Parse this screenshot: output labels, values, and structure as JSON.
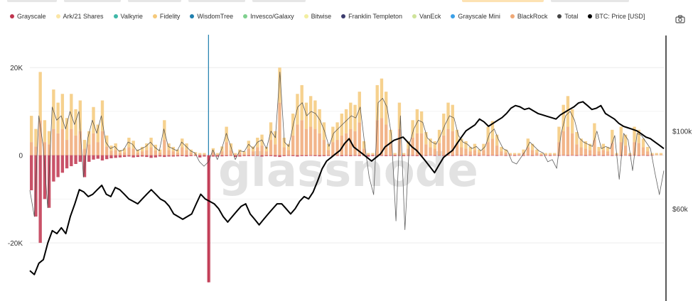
{
  "legend": [
    {
      "label": "Grayscale",
      "color": "#c0344e"
    },
    {
      "label": "Ark/21 Shares",
      "color": "#fbe6a6"
    },
    {
      "label": "Valkyrie",
      "color": "#3fb7a7"
    },
    {
      "label": "Fidelity",
      "color": "#f5c97a"
    },
    {
      "label": "WisdomTree",
      "color": "#1f7fae"
    },
    {
      "label": "Invesco/Galaxy",
      "color": "#7fd08e"
    },
    {
      "label": "Bitwise",
      "color": "#f2eea0"
    },
    {
      "label": "Franklin Templeton",
      "color": "#3c3c6e"
    },
    {
      "label": "VanEck",
      "color": "#cfe39a"
    },
    {
      "label": "Grayscale Mini",
      "color": "#3aa0e8"
    },
    {
      "label": "BlackRock",
      "color": "#f0a875"
    },
    {
      "label": "Total",
      "color": "#444444"
    },
    {
      "label": "BTC: Price [USD]",
      "color": "#000000"
    }
  ],
  "watermark": "glassnode",
  "icons": {
    "camera": "camera-icon"
  },
  "chart_data": {
    "type": "bar",
    "y_left": {
      "ticks": [
        "20K",
        "0",
        "-20K"
      ],
      "tick_values": [
        20000,
        0,
        -20000
      ],
      "ylim": [
        -31000,
        27000
      ]
    },
    "y_right": {
      "ticks": [
        "$100k",
        "$60k"
      ],
      "tick_values": [
        100000,
        60000
      ],
      "scale": "log",
      "ylim": [
        35000,
        185000
      ]
    },
    "grid": true,
    "legend_position": "top",
    "annotations": [
      {
        "series": "WisdomTree",
        "x_index": 40,
        "value": 27500
      },
      {
        "series": "Grayscale",
        "x_index": 40,
        "value": -29000
      }
    ],
    "series": [
      {
        "name": "Total",
        "color": "#444444",
        "kind": "line",
        "values": [
          -8000,
          -14000,
          9000,
          2000,
          -12000,
          11000,
          8000,
          9000,
          6000,
          10000,
          7000,
          10000,
          -5000,
          4000,
          8000,
          5000,
          9000,
          3000,
          1500,
          2000,
          900,
          1200,
          3000,
          2500,
          1000,
          1500,
          2000,
          3000,
          1800,
          1000,
          6000,
          2000,
          1500,
          1000,
          3000,
          2000,
          1000,
          500,
          -1500,
          -2500,
          -1500,
          1200,
          -1000,
          1500,
          5000,
          2000,
          -1000,
          1000,
          800,
          2500,
          1500,
          3000,
          3500,
          1500,
          5500,
          4000,
          19000,
          3000,
          2000,
          7000,
          11000,
          12000,
          9000,
          10000,
          9500,
          8000,
          5500,
          2000,
          5000,
          6000,
          7000,
          8000,
          9000,
          8500,
          11000,
          2500,
          -5000,
          -9000,
          12000,
          13000,
          11000,
          4500,
          -15000,
          9000,
          -17000,
          2500,
          6000,
          8000,
          7500,
          4000,
          3000,
          2500,
          4500,
          7000,
          9000,
          8500,
          4500,
          3000,
          2500,
          1500,
          2000,
          1000,
          2000,
          5000,
          6000,
          3500,
          1500,
          1000,
          -1500,
          -2000,
          -500,
          1000,
          3000,
          2000,
          1000,
          500,
          -1500,
          -1000,
          -3000,
          5000,
          9000,
          10000,
          8000,
          4000,
          3000,
          2500,
          2000,
          5500,
          1500,
          2000,
          1500,
          4500,
          -5500,
          5000,
          3500,
          -3500,
          5000,
          4500,
          3000,
          1500,
          -4000,
          -9000,
          -3500
        ]
      },
      {
        "name": "BTC: Price [USD]",
        "color": "#000000",
        "kind": "line",
        "axis": "right",
        "values": [
          40000,
          39000,
          42000,
          43000,
          48000,
          52000,
          51000,
          53000,
          51000,
          57000,
          62000,
          68000,
          67000,
          65000,
          66000,
          68000,
          70000,
          66000,
          65000,
          69000,
          68000,
          66000,
          64000,
          63000,
          62000,
          64000,
          66000,
          68000,
          66000,
          64000,
          63000,
          61000,
          58000,
          57000,
          56000,
          57000,
          58000,
          62000,
          66000,
          64000,
          63000,
          62000,
          60000,
          57000,
          55000,
          57000,
          59000,
          61000,
          62000,
          58000,
          56000,
          54000,
          56000,
          58000,
          60000,
          62000,
          62000,
          60000,
          58000,
          60000,
          63000,
          65000,
          64000,
          67000,
          72000,
          78000,
          82000,
          84000,
          86000,
          88000,
          92000,
          95000,
          90000,
          88000,
          86000,
          84000,
          82000,
          84000,
          86000,
          90000,
          92000,
          94000,
          95000,
          96000,
          93000,
          90000,
          88000,
          85000,
          82000,
          79000,
          76000,
          80000,
          84000,
          86000,
          88000,
          92000,
          96000,
          100000,
          102000,
          104000,
          108000,
          106000,
          103000,
          105000,
          107000,
          109000,
          112000,
          116000,
          118000,
          117000,
          115000,
          116000,
          114000,
          112000,
          111000,
          110000,
          109000,
          108000,
          111000,
          113000,
          115000,
          117000,
          120000,
          121000,
          118000,
          115000,
          116000,
          118000,
          112000,
          110000,
          108000,
          105000,
          103000,
          102000,
          101000,
          100000,
          98000,
          96000,
          95000,
          93000,
          91000,
          89000
        ]
      }
    ],
    "inflow_bars": {
      "note": "per-issuer flows stacked: values in USD units; negative = outflow",
      "Grayscale": [
        -8000,
        -14000,
        -20000,
        -10000,
        -12000,
        -6000,
        -5000,
        -4000,
        -3000,
        -2500,
        -2000,
        -1500,
        -5000,
        -1500,
        -1000,
        -800,
        -1200,
        -900,
        -700,
        -600,
        -500,
        -400,
        -300,
        -500,
        -400,
        -300,
        -400,
        -600,
        -500,
        -300,
        -400,
        -300,
        -300,
        -250,
        -200,
        -300,
        -200,
        -150,
        -500,
        -300,
        -29000,
        -300,
        -300,
        -250,
        -200,
        -150,
        -400,
        -300,
        -200,
        -200,
        -150,
        -150,
        -300,
        -200,
        -200,
        -300,
        -400,
        -200,
        -150,
        -200,
        -300,
        -200,
        -200,
        -150,
        -200,
        -250,
        -200,
        -150,
        -200,
        -150,
        -200,
        -150,
        -200,
        -150,
        -200,
        -150,
        -300,
        -200,
        -150,
        -150,
        -200,
        -150,
        -200,
        -150,
        -200,
        -150,
        -150,
        -200,
        -150,
        -150,
        -100,
        -150,
        -100,
        -150,
        -100,
        -150,
        -100,
        -150,
        -100,
        -150,
        -100,
        -150,
        -100,
        -150,
        -100,
        -150,
        -100,
        -150,
        -100,
        -150,
        -100,
        -150,
        -100,
        -150,
        -100,
        -150,
        -100,
        -150,
        -100,
        -150,
        -100,
        -150,
        -100,
        -150,
        -100,
        -150,
        -100,
        -150,
        -100,
        -150,
        -100,
        -150,
        -100,
        -150,
        -100,
        -150,
        -100,
        -150,
        -100,
        -150,
        -100
      ],
      "Fidelity": [
        6000,
        4000,
        11000,
        5000,
        3000,
        9000,
        7000,
        8000,
        5000,
        8000,
        6000,
        7000,
        2000,
        3000,
        6000,
        4000,
        7000,
        2500,
        1200,
        1500,
        700,
        900,
        2200,
        1800,
        700,
        1000,
        1500,
        2200,
        1300,
        700,
        4500,
        1500,
        1000,
        700,
        2000,
        1500,
        700,
        400,
        300,
        300,
        0,
        900,
        300,
        1100,
        3500,
        1500,
        300,
        700,
        500,
        1800,
        1100,
        2200,
        2500,
        1000,
        4000,
        3000,
        8000,
        2200,
        1400,
        5000,
        7000,
        8000,
        6000,
        7000,
        6500,
        5500,
        4000,
        1400,
        3500,
        4000,
        5000,
        5500,
        6000,
        6000,
        7000,
        1700,
        300,
        300,
        8000,
        9000,
        7500,
        3000,
        300,
        6000,
        300,
        1700,
        4000,
        5500,
        5000,
        2800,
        2000,
        1700,
        3000,
        5000,
        6000,
        6000,
        3000,
        2000,
        1700,
        1000,
        1400,
        700,
        1400,
        3500,
        4000,
        2500,
        1000,
        700,
        300,
        300,
        300,
        700,
        2000,
        1400,
        700,
        300,
        300,
        300,
        300,
        3500,
        6000,
        7000,
        5500,
        2800,
        2000,
        1700,
        1400,
        3800,
        1000,
        1400,
        1000,
        3000,
        300,
        3500,
        2500,
        300,
        3500,
        3000,
        2000,
        1000,
        300,
        300,
        300
      ],
      "BlackRock": [
        3000,
        2000,
        8000,
        3000,
        2500,
        6000,
        5000,
        6000,
        3500,
        6000,
        4500,
        5500,
        1500,
        2500,
        5000,
        3000,
        5500,
        2000,
        1000,
        1200,
        500,
        700,
        1800,
        1500,
        600,
        900,
        1200,
        1800,
        1100,
        600,
        3500,
        1200,
        900,
        600,
        1800,
        1200,
        600,
        300,
        200,
        200,
        0,
        700,
        200,
        900,
        3000,
        1200,
        200,
        600,
        400,
        1500,
        900,
        1800,
        2200,
        900,
        3500,
        2500,
        12000,
        1800,
        1200,
        4500,
        7000,
        8000,
        6000,
        6500,
        6000,
        5000,
        3500,
        1200,
        3000,
        3500,
        4500,
        5000,
        6000,
        5500,
        7500,
        1500,
        200,
        200,
        8000,
        8500,
        7000,
        2800,
        200,
        6000,
        200,
        1500,
        4000,
        5000,
        5000,
        2500,
        1800,
        1500,
        2800,
        4500,
        6000,
        5500,
        2800,
        1800,
        1500,
        900,
        1200,
        600,
        1200,
        3000,
        3800,
        2200,
        900,
        600,
        200,
        200,
        200,
        600,
        1800,
        1200,
        600,
        200,
        200,
        200,
        200,
        3000,
        5500,
        6500,
        5000,
        2500,
        1800,
        1500,
        1200,
        3500,
        900,
        1200,
        900,
        2800,
        200,
        3000,
        2200,
        200,
        3000,
        2800,
        1800,
        900,
        200,
        200,
        200
      ]
    }
  }
}
